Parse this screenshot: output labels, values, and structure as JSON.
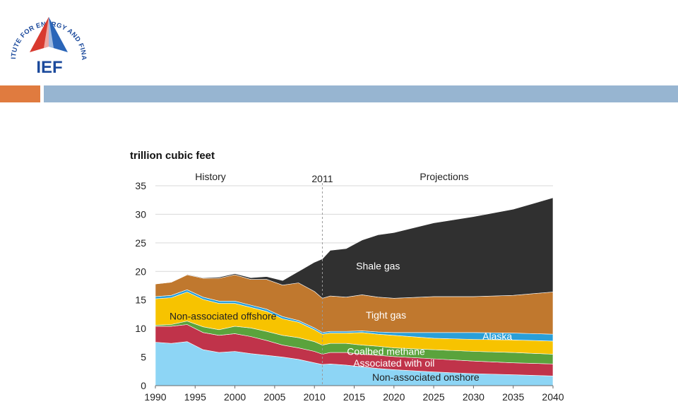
{
  "logo": {
    "ring_text": "INSTITUTE FOR ENERGY AND FINANCE",
    "abbr": "IEF",
    "colors": {
      "text": "#1c4a9c",
      "triangle_red": "#d83a2f",
      "triangle_blue": "#2a65b8"
    }
  },
  "header": {
    "accent_color": "#e07b3f",
    "bar_color": "#97b5d1"
  },
  "chart_data": {
    "type": "area",
    "stacked": true,
    "unit_label": "trillion cubic feet",
    "ylim": [
      0,
      35
    ],
    "yticks": [
      0,
      5,
      10,
      15,
      20,
      25,
      30,
      35
    ],
    "xlim": [
      1990,
      2040
    ],
    "xticks": [
      1990,
      1995,
      2000,
      2005,
      2010,
      2015,
      2020,
      2025,
      2030,
      2035,
      2040
    ],
    "divider": {
      "year": 2011,
      "label": "2011"
    },
    "regions": {
      "history": "History",
      "projections": "Projections"
    },
    "grid": true,
    "x": [
      1990,
      1992,
      1994,
      1996,
      1998,
      2000,
      2002,
      2004,
      2006,
      2008,
      2010,
      2011,
      2012,
      2014,
      2016,
      2018,
      2020,
      2025,
      2030,
      2035,
      2040
    ],
    "series": [
      {
        "name": "Non-associated onshore",
        "color": "#8dd5f5",
        "label_color": "#222222",
        "values": [
          7.6,
          7.4,
          7.7,
          6.3,
          5.8,
          6.0,
          5.6,
          5.3,
          5.0,
          4.6,
          4.0,
          3.7,
          3.8,
          3.6,
          3.3,
          3.0,
          2.8,
          2.4,
          2.1,
          1.9,
          1.7
        ]
      },
      {
        "name": "Associated with oil",
        "color": "#c0334a",
        "label_color": "#ffffff",
        "values": [
          2.8,
          3.0,
          3.0,
          3.0,
          3.0,
          3.1,
          3.0,
          2.6,
          2.1,
          2.0,
          2.0,
          1.8,
          2.0,
          2.2,
          2.2,
          2.3,
          2.3,
          2.3,
          2.2,
          2.1,
          2.1
        ]
      },
      {
        "name": "Coalbed methane",
        "color": "#5aa33c",
        "label_color": "#ffffff",
        "values": [
          0.2,
          0.3,
          0.6,
          1.0,
          1.0,
          1.3,
          1.5,
          1.6,
          1.7,
          1.8,
          1.7,
          1.6,
          1.6,
          1.6,
          1.6,
          1.6,
          1.5,
          1.6,
          1.7,
          1.8,
          1.7
        ]
      },
      {
        "name": "Non-associated offshore",
        "color": "#f7c300",
        "label_color": "#222222",
        "values": [
          4.6,
          4.7,
          5.1,
          4.8,
          4.6,
          4.0,
          3.6,
          3.5,
          2.9,
          2.7,
          2.1,
          1.9,
          1.8,
          1.8,
          2.2,
          2.1,
          2.2,
          2.0,
          2.1,
          2.2,
          2.3
        ]
      },
      {
        "name": "Alaska",
        "color": "#2a9fd8",
        "label_color": "#ffffff",
        "values": [
          0.4,
          0.4,
          0.4,
          0.4,
          0.4,
          0.4,
          0.4,
          0.4,
          0.4,
          0.3,
          0.3,
          0.3,
          0.3,
          0.3,
          0.3,
          0.4,
          0.5,
          1.0,
          1.2,
          1.2,
          1.2
        ]
      },
      {
        "name": "Tight gas",
        "color": "#c0782e",
        "label_color": "#ffffff",
        "values": [
          2.2,
          2.3,
          2.6,
          3.3,
          4.0,
          4.6,
          4.5,
          5.2,
          5.5,
          6.6,
          6.4,
          6.0,
          6.2,
          6.0,
          6.3,
          6.1,
          6.0,
          6.3,
          6.3,
          6.6,
          7.4
        ]
      },
      {
        "name": "Shale gas",
        "color": "#303030",
        "label_color": "#ffffff",
        "values": [
          0.0,
          0.0,
          0.1,
          0.1,
          0.2,
          0.2,
          0.3,
          0.5,
          0.8,
          2.0,
          5.1,
          6.9,
          8.0,
          8.5,
          9.6,
          10.9,
          11.5,
          12.9,
          14.0,
          15.1,
          16.5
        ]
      }
    ]
  }
}
